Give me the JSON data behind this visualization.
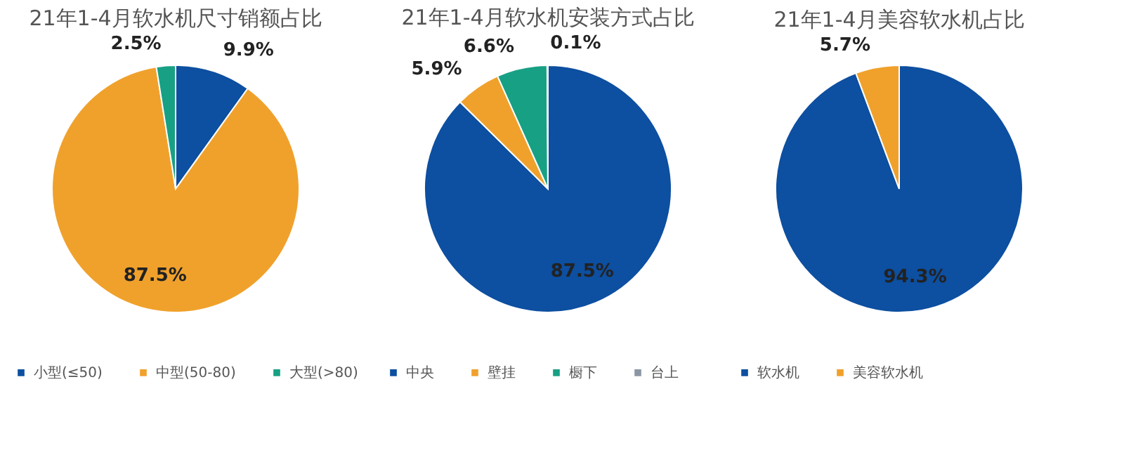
{
  "chart_data": [
    {
      "type": "pie",
      "title": "21年1-4月软水机尺寸销额占比",
      "categories": [
        "小型(≤50)",
        "中型(50-80)",
        "大型(>80)"
      ],
      "values": [
        9.9,
        87.5,
        2.5
      ],
      "colors": [
        "#0d4fa0",
        "#f0a12c",
        "#17a084"
      ],
      "value_labels": [
        "9.9%",
        "87.5%",
        "2.5%"
      ],
      "legend": "bottom"
    },
    {
      "type": "pie",
      "title": "21年1-4月软水机安装方式占比",
      "categories": [
        "中央",
        "壁挂",
        "橱下",
        "台上"
      ],
      "values": [
        87.5,
        5.9,
        6.6,
        0.1
      ],
      "colors": [
        "#0d4fa0",
        "#f0a12c",
        "#17a084",
        "#8a96a3"
      ],
      "value_labels": [
        "87.5%",
        "5.9%",
        "6.6%",
        "0.1%"
      ],
      "legend": "bottom"
    },
    {
      "type": "pie",
      "title": "21年1-4月美容软水机占比",
      "categories": [
        "软水机",
        "美容软水机"
      ],
      "values": [
        94.3,
        5.7
      ],
      "colors": [
        "#0d4fa0",
        "#f0a12c"
      ],
      "value_labels": [
        "94.3%",
        "5.7%"
      ],
      "legend": "bottom"
    }
  ]
}
